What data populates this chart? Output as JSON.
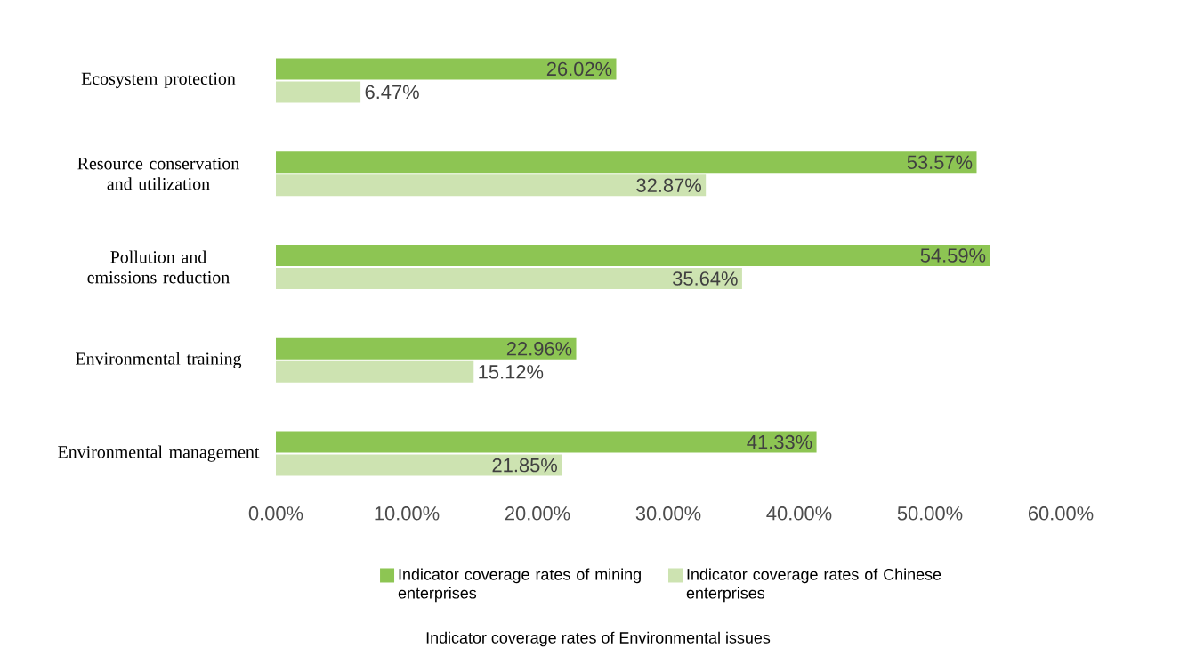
{
  "chart_data": {
    "type": "bar",
    "orientation": "horizontal",
    "title": "Indicator coverage rates of Environmental issues",
    "categories": [
      "Ecosystem protection",
      "Resource conservation and utilization",
      "Pollution  and emissions  reduction",
      "Environmental training",
      "Environmental management"
    ],
    "series": [
      {
        "name": "Indicator coverage rates of mining enterprises",
        "color": "#8dc553",
        "values": [
          26.02,
          53.57,
          54.59,
          22.96,
          41.33
        ],
        "value_labels": [
          "26.02%",
          "53.57%",
          "54.59%",
          "22.96%",
          "41.33%"
        ]
      },
      {
        "name": "Indicator coverage rates of Chinese enterprises",
        "color": "#cde3b1",
        "values": [
          6.47,
          32.87,
          35.64,
          15.12,
          21.85
        ],
        "value_labels": [
          "6.47%",
          "32.87%",
          "35.64%",
          "15.12%",
          "21.85%"
        ]
      }
    ],
    "xlim": [
      0,
      60
    ],
    "xticks": [
      {
        "value": 0,
        "label": "0.00%"
      },
      {
        "value": 10,
        "label": "10.00%"
      },
      {
        "value": 20,
        "label": "20.00%"
      },
      {
        "value": 30,
        "label": "30.00%"
      },
      {
        "value": 40,
        "label": "40.00%"
      },
      {
        "value": 50,
        "label": "50.00%"
      },
      {
        "value": 60,
        "label": "60.00%"
      }
    ],
    "legend": "bottom",
    "grid": false
  }
}
